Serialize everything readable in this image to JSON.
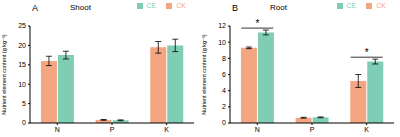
{
  "chart_data": [
    {
      "type": "bar",
      "panel": "A",
      "title": "Shoot",
      "y_label": "Nutrient element content (g kg⁻¹)",
      "categories": [
        "N",
        "P",
        "K"
      ],
      "series": [
        {
          "name": "CK",
          "color": "#f4a582",
          "values": [
            16.0,
            0.8,
            19.5
          ],
          "errors": [
            1.2,
            0.1,
            1.5
          ]
        },
        {
          "name": "CE",
          "color": "#80cdb5",
          "values": [
            17.5,
            0.7,
            20.0
          ],
          "errors": [
            1.0,
            0.1,
            1.6
          ]
        }
      ],
      "ylim": [
        0,
        25
      ],
      "yticks": [
        0,
        5,
        10,
        15,
        20,
        25
      ],
      "legend": "upper right",
      "annotations": []
    },
    {
      "type": "bar",
      "panel": "B",
      "title": "Root",
      "y_label": "Nutrient element content (g kg⁻¹)",
      "categories": [
        "N",
        "P",
        "K"
      ],
      "series": [
        {
          "name": "CK",
          "color": "#f4a582",
          "values": [
            9.3,
            0.65,
            5.2
          ],
          "errors": [
            0.1,
            0.05,
            0.8
          ]
        },
        {
          "name": "CE",
          "color": "#80cdb5",
          "values": [
            11.2,
            0.7,
            7.6
          ],
          "errors": [
            0.3,
            0.05,
            0.3
          ]
        }
      ],
      "ylim": [
        0,
        12
      ],
      "yticks": [
        0,
        2,
        4,
        6,
        8,
        10,
        12
      ],
      "legend": "upper right",
      "annotations": [
        {
          "category": "N",
          "text": "*"
        },
        {
          "category": "K",
          "text": "*"
        }
      ]
    }
  ]
}
